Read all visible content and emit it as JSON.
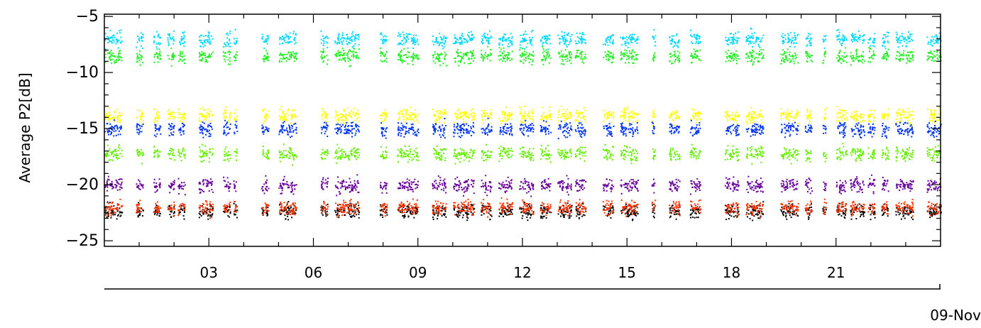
{
  "chart_data": {
    "type": "scatter",
    "title": "",
    "ylabel": "Average  P2[dB]",
    "xlabel": "",
    "date_label": "09-Nov",
    "xlim": [
      0,
      24
    ],
    "ylim": [
      -25.5,
      -4.8
    ],
    "x_ticks": [
      3,
      6,
      9,
      12,
      15,
      18,
      21
    ],
    "x_tick_labels": [
      "03",
      "06",
      "09",
      "12",
      "15",
      "18",
      "21"
    ],
    "y_ticks": [
      -5,
      -10,
      -15,
      -20,
      -25
    ],
    "y_tick_labels": [
      "-5",
      "-10",
      "-15",
      "-20",
      "-25"
    ],
    "grid": false,
    "legend": "none",
    "point_size": 2,
    "series": [
      {
        "color": "#00d8ff",
        "level": -7.0,
        "spread": 0.6
      },
      {
        "color": "#22ee22",
        "level": -8.5,
        "spread": 0.6
      },
      {
        "color": "#ffff00",
        "level": -13.8,
        "spread": 0.6
      },
      {
        "color": "#0033ee",
        "level": -15.0,
        "spread": 0.6
      },
      {
        "color": "#66ee00",
        "level": -17.2,
        "spread": 0.6
      },
      {
        "color": "#660099",
        "level": -20.0,
        "spread": 0.6
      },
      {
        "color": "#000000",
        "level": -22.3,
        "spread": 0.6
      },
      {
        "color": "#ff3300",
        "level": -22.0,
        "spread": 0.6
      }
    ],
    "coverage_hours": [
      [
        0.0,
        0.5
      ],
      [
        0.9,
        1.1
      ],
      [
        1.4,
        1.6
      ],
      [
        1.8,
        2.0
      ],
      [
        2.1,
        2.3
      ],
      [
        2.7,
        3.1
      ],
      [
        3.4,
        3.6
      ],
      [
        3.7,
        3.8
      ],
      [
        4.5,
        4.7
      ],
      [
        5.0,
        5.5
      ],
      [
        6.2,
        6.4
      ],
      [
        6.6,
        7.3
      ],
      [
        7.9,
        8.1
      ],
      [
        8.4,
        9.0
      ],
      [
        9.4,
        9.8
      ],
      [
        10.0,
        10.6
      ],
      [
        10.8,
        11.1
      ],
      [
        11.3,
        11.7
      ],
      [
        11.9,
        12.3
      ],
      [
        12.5,
        12.8
      ],
      [
        13.0,
        13.4
      ],
      [
        13.5,
        13.8
      ],
      [
        14.3,
        14.6
      ],
      [
        14.8,
        15.3
      ],
      [
        15.7,
        15.8
      ],
      [
        16.2,
        16.5
      ],
      [
        16.8,
        17.1
      ],
      [
        17.8,
        18.2
      ],
      [
        18.4,
        18.9
      ],
      [
        19.4,
        19.9
      ],
      [
        20.1,
        20.3
      ],
      [
        20.6,
        20.7
      ],
      [
        21.0,
        21.3
      ],
      [
        21.4,
        21.8
      ],
      [
        21.9,
        22.1
      ],
      [
        22.3,
        22.5
      ],
      [
        22.7,
        23.2
      ],
      [
        23.6,
        24.0
      ]
    ]
  }
}
